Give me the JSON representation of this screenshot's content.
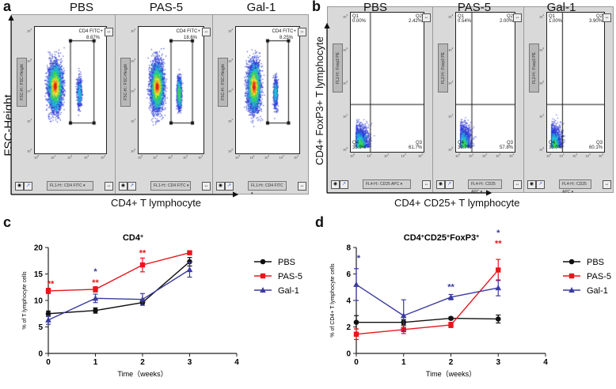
{
  "panel_a": {
    "letter": "a",
    "conditions": [
      "PBS",
      "PAS-5",
      "Gal-1"
    ],
    "gate_name": "CD4 FITC+",
    "gate_percents": [
      "8.87%",
      "18.6%",
      "8.25%"
    ],
    "y_channel_label": "FSC-H:: FSC-Height",
    "x_channel_label": "FL1-H:: CD4 FITC",
    "y_axis_title": "FSC-Height",
    "x_axis_title": "CD4+ T lymphocyte"
  },
  "panel_b": {
    "letter": "b",
    "conditions": [
      "PBS",
      "PAS-5",
      "Gal-1"
    ],
    "quadrant_names": [
      "Q1",
      "Q2",
      "Q3",
      "Q4"
    ],
    "q1": [
      "0.00%",
      "0.54%",
      "1.00%"
    ],
    "q2": [
      "2.42%",
      "2.00%",
      "3.90%"
    ],
    "q3": [
      "61.7%",
      "57.8%",
      "60.1%"
    ],
    "q4": [
      "35.9%",
      "39.7%",
      "35.0%"
    ],
    "y_channel_label": "FL2-H:: Foxp3 PE",
    "x_channel_label": "FL4-H:: CD25 APC",
    "y_axis_title": "CD4+ FoxP3+ T lymphocyte",
    "x_axis_title": "CD4+ CD25+ T lymphocyte"
  },
  "flow_ticks": {
    "x": [
      "10",
      "10",
      "10",
      "10",
      "10"
    ],
    "y": [
      "10",
      "10",
      "10",
      "10",
      "10"
    ],
    "exponents": [
      "0",
      "1",
      "2",
      "3",
      "4"
    ]
  },
  "colors": {
    "pbs": "#111111",
    "pas5": "#e8161b",
    "gal1": "#3b3b9e",
    "sig_red": "#e8161b",
    "sig_blue": "#3b3b9e"
  },
  "chart_data": [
    {
      "id": "c",
      "letter": "c",
      "type": "line",
      "title": "CD4",
      "title_sup": "+",
      "xlabel": "Time（weeks）",
      "ylabel": "% of T lymphocyte cells",
      "x": [
        0,
        1,
        2,
        3
      ],
      "xlim": [
        0,
        4
      ],
      "xticks": [
        0,
        1,
        2,
        3,
        4
      ],
      "ylim": [
        0,
        20
      ],
      "yticks": [
        0,
        5,
        10,
        15,
        20
      ],
      "series": [
        {
          "name": "PBS",
          "values": [
            7.5,
            8.1,
            9.6,
            17.3
          ],
          "errors": [
            0.5,
            0.5,
            0.5,
            0.8
          ],
          "color": "#111111",
          "marker": "circle"
        },
        {
          "name": "PAS-5",
          "values": [
            11.8,
            12.1,
            16.7,
            19.0
          ],
          "errors": [
            0.5,
            0.5,
            1.3,
            0.3
          ],
          "color": "#e8161b",
          "marker": "square"
        },
        {
          "name": "Gal-1",
          "values": [
            6.3,
            10.4,
            10.2,
            15.8
          ],
          "errors": [
            0.8,
            0.8,
            1.1,
            1.4
          ],
          "color": "#3b3b9e",
          "marker": "triangle"
        }
      ],
      "annotations": [
        {
          "x": 0,
          "y": 12.6,
          "text": "**",
          "color": "#e8161b"
        },
        {
          "x": 1,
          "y": 14.9,
          "text": "*",
          "color": "#3b3b9e"
        },
        {
          "x": 1,
          "y": 12.8,
          "text": "**",
          "color": "#e8161b"
        },
        {
          "x": 2,
          "y": 18.4,
          "text": "**",
          "color": "#e8161b"
        }
      ]
    },
    {
      "id": "d",
      "letter": "d",
      "type": "line",
      "title": "CD4",
      "title_sup": "+",
      "title_mid": "CD25",
      "title_sup2": "+",
      "title_end": "FoxP3",
      "title_sup3": "+",
      "xlabel": "Time（weeks）",
      "ylabel": "% of CD4+ T lymphocyte cells",
      "x": [
        0,
        1,
        2,
        3
      ],
      "xlim": [
        0,
        4
      ],
      "xticks": [
        0,
        1,
        2,
        3,
        4
      ],
      "ylim": [
        0,
        8
      ],
      "yticks": [
        0,
        2,
        4,
        6,
        8
      ],
      "series": [
        {
          "name": "PBS",
          "values": [
            2.35,
            2.35,
            2.65,
            2.6
          ],
          "errors": [
            0.5,
            0.2,
            0.1,
            0.3
          ],
          "color": "#111111",
          "marker": "circle"
        },
        {
          "name": "PAS-5",
          "values": [
            1.45,
            1.8,
            2.15,
            6.3
          ],
          "errors": [
            0.4,
            0.3,
            0.2,
            0.8
          ],
          "color": "#e8161b",
          "marker": "square"
        },
        {
          "name": "Gal-1",
          "values": [
            5.2,
            2.85,
            4.25,
            4.95
          ],
          "errors": [
            1.2,
            1.2,
            0.2,
            0.6
          ],
          "color": "#3b3b9e",
          "marker": "triangle"
        }
      ],
      "annotations": [
        {
          "x": 0,
          "y": 7.0,
          "text": "*",
          "color": "#3b3b9e"
        },
        {
          "x": 2,
          "y": 4.8,
          "text": "**",
          "color": "#3b3b9e"
        },
        {
          "x": 3,
          "y": 8.1,
          "text": "**",
          "color": "#e8161b"
        },
        {
          "x": 3,
          "y": 8.9,
          "text": "*",
          "color": "#3b3b9e"
        }
      ]
    }
  ]
}
